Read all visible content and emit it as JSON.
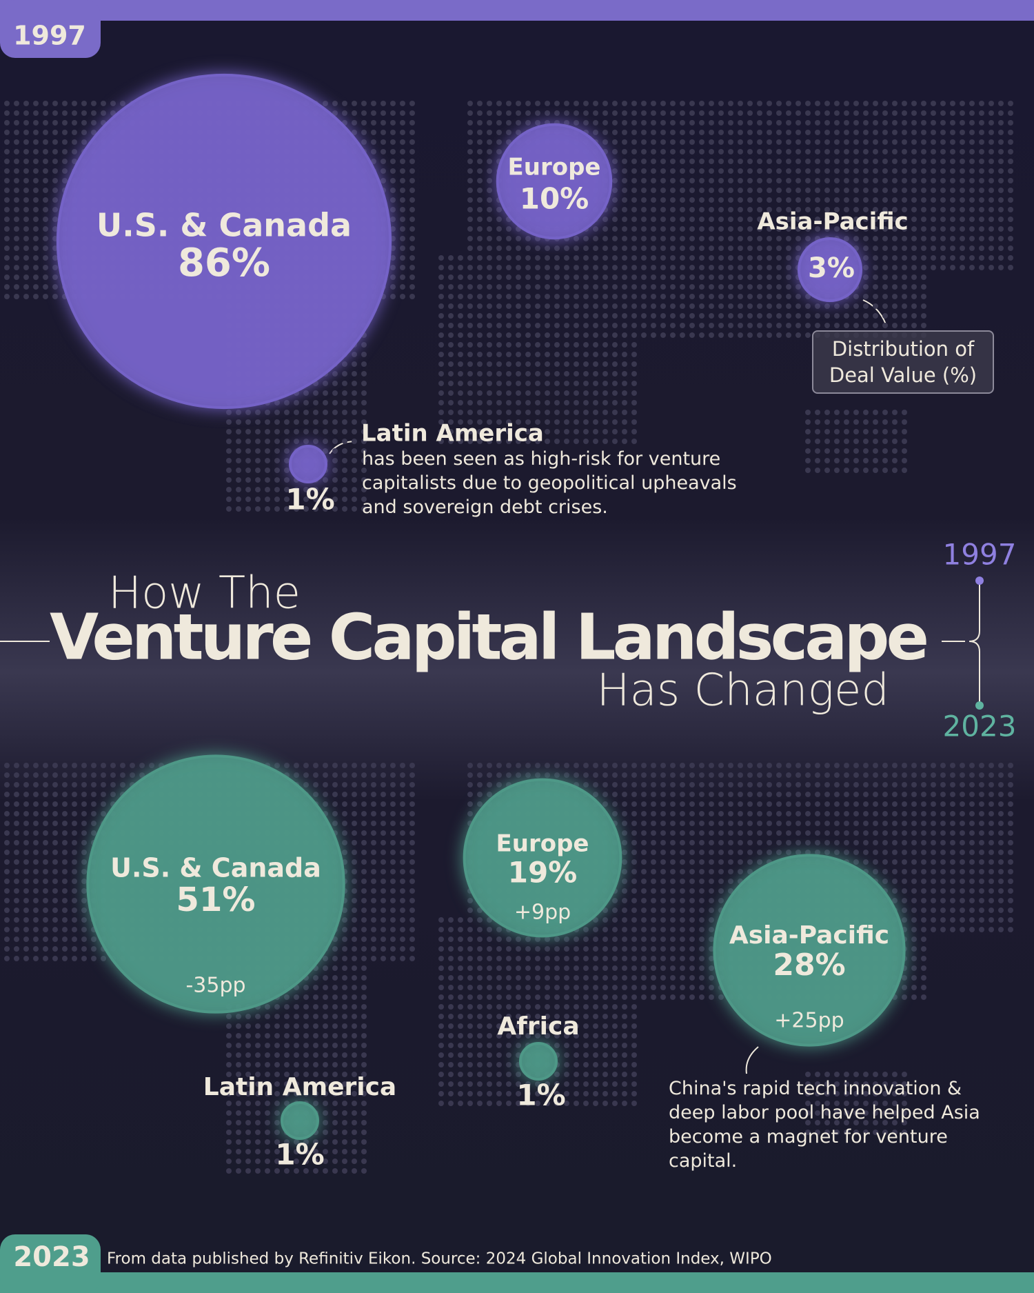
{
  "top_badge": "1997",
  "bottom_badge": "2023",
  "title": {
    "line1": "How The",
    "line2": "Venture Capital Landscape",
    "line3": "Has Changed"
  },
  "timeline": {
    "start": "1997",
    "end": "2023"
  },
  "legend_note": "Distribution of Deal Value (%)",
  "panels": [
    {
      "year": "1997",
      "color": "#7563c7",
      "regions": [
        {
          "name": "U.S. & Canada",
          "value": 86,
          "value_label": "86%"
        },
        {
          "name": "Europe",
          "value": 10,
          "value_label": "10%"
        },
        {
          "name": "Asia-Pacific",
          "value": 3,
          "value_label": "3%"
        },
        {
          "name": "Latin America",
          "value": 1,
          "value_label": "1%"
        }
      ],
      "annotation": "has been seen as high-risk for venture capitalists due to geopolitical upheavals and sovereign debt crises."
    },
    {
      "year": "2023",
      "color": "#4e9887",
      "regions": [
        {
          "name": "U.S. & Canada",
          "value": 51,
          "value_label": "51%",
          "change": "-35pp"
        },
        {
          "name": "Europe",
          "value": 19,
          "value_label": "19%",
          "change": "+9pp"
        },
        {
          "name": "Asia-Pacific",
          "value": 28,
          "value_label": "28%",
          "change": "+25pp"
        },
        {
          "name": "Latin America",
          "value": 1,
          "value_label": "1%"
        },
        {
          "name": "Africa",
          "value": 1,
          "value_label": "1%"
        }
      ],
      "annotation": "China's rapid tech innovation & deep labor pool have helped Asia become a magnet for venture capital."
    }
  ],
  "source": "From data published by Refinitiv Eikon. Source: 2024 Global Innovation Index, WIPO"
}
